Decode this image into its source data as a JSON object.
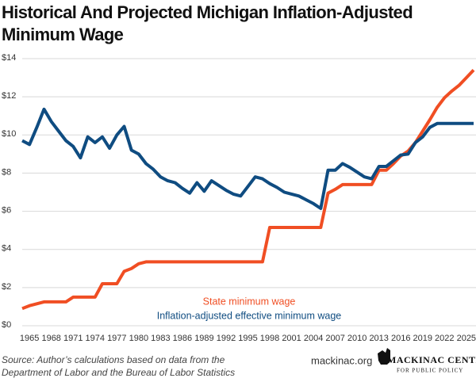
{
  "chart_data": {
    "type": "line",
    "title": [
      "Historical And Projected Michigan Inflation-Adjusted",
      "Minimum Wage"
    ],
    "x": [
      1964,
      1965,
      1966,
      1967,
      1968,
      1969,
      1970,
      1971,
      1972,
      1973,
      1974,
      1975,
      1976,
      1977,
      1978,
      1979,
      1980,
      1981,
      1982,
      1983,
      1984,
      1985,
      1986,
      1987,
      1988,
      1989,
      1990,
      1991,
      1992,
      1993,
      1994,
      1995,
      1996,
      1997,
      1998,
      1999,
      2000,
      2001,
      2002,
      2003,
      2004,
      2005,
      2006,
      2007,
      2008,
      2009,
      2010,
      2011,
      2012,
      2013,
      2014,
      2015,
      2016,
      2017,
      2018,
      2019,
      2020,
      2021,
      2022,
      2023,
      2024,
      2025,
      2026
    ],
    "series": [
      {
        "name": "State minimum wage",
        "color": "#f04e23",
        "values": [
          0.9,
          1.05,
          1.15,
          1.25,
          1.25,
          1.25,
          1.25,
          1.5,
          1.5,
          1.5,
          1.5,
          2.2,
          2.2,
          2.2,
          2.85,
          3.0,
          3.25,
          3.35,
          3.35,
          3.35,
          3.35,
          3.35,
          3.35,
          3.35,
          3.35,
          3.35,
          3.35,
          3.35,
          3.35,
          3.35,
          3.35,
          3.35,
          3.35,
          3.35,
          5.15,
          5.15,
          5.15,
          5.15,
          5.15,
          5.15,
          5.15,
          5.15,
          6.95,
          7.15,
          7.4,
          7.4,
          7.4,
          7.4,
          7.4,
          8.15,
          8.15,
          8.5,
          8.9,
          9.15,
          9.6,
          10.2,
          10.8,
          11.45,
          11.95,
          12.3,
          12.6,
          13.0,
          13.4
        ]
      },
      {
        "name": "Inflation-adjusted effective minimum wage",
        "color": "#0f4c81",
        "values": [
          9.7,
          9.5,
          10.4,
          11.35,
          10.7,
          10.2,
          9.7,
          9.4,
          8.8,
          9.9,
          9.6,
          9.9,
          9.3,
          10.0,
          10.45,
          9.2,
          9.0,
          8.5,
          8.2,
          7.8,
          7.6,
          7.5,
          7.2,
          6.95,
          7.5,
          7.05,
          7.6,
          7.35,
          7.1,
          6.9,
          6.8,
          7.3,
          7.8,
          7.7,
          7.45,
          7.25,
          7.0,
          6.9,
          6.8,
          6.6,
          6.4,
          6.15,
          8.15,
          8.15,
          8.5,
          8.3,
          8.05,
          7.8,
          7.7,
          8.35,
          8.35,
          8.65,
          8.95,
          9.0,
          9.6,
          9.9,
          10.4,
          10.6,
          10.6,
          10.6,
          10.6,
          10.6,
          10.6
        ]
      }
    ],
    "xlim": [
      1964,
      2026
    ],
    "xticks": [
      1965,
      1968,
      1971,
      1974,
      1977,
      1980,
      1983,
      1986,
      1989,
      1992,
      1995,
      1998,
      2001,
      2004,
      2007,
      2010,
      2013,
      2016,
      2019,
      2022,
      2025
    ],
    "ylim": [
      0,
      14
    ],
    "yticks": [
      {
        "value": 0,
        "label": "$0"
      },
      {
        "value": 2,
        "label": "$2"
      },
      {
        "value": 4,
        "label": "$4"
      },
      {
        "value": 6,
        "label": "$6"
      },
      {
        "value": 8,
        "label": "$8"
      },
      {
        "value": 10,
        "label": "$10"
      },
      {
        "value": 12,
        "label": "$12"
      },
      {
        "value": 14,
        "label": "$14"
      }
    ],
    "grid": true,
    "source": [
      "Source: Author’s calculations based on data from the",
      "Department of Labor and the Bureau of Labor Statistics"
    ],
    "website": "mackinac.org",
    "logo": [
      "MACKINAC CENTER",
      "FOR PUBLIC POLICY"
    ]
  }
}
